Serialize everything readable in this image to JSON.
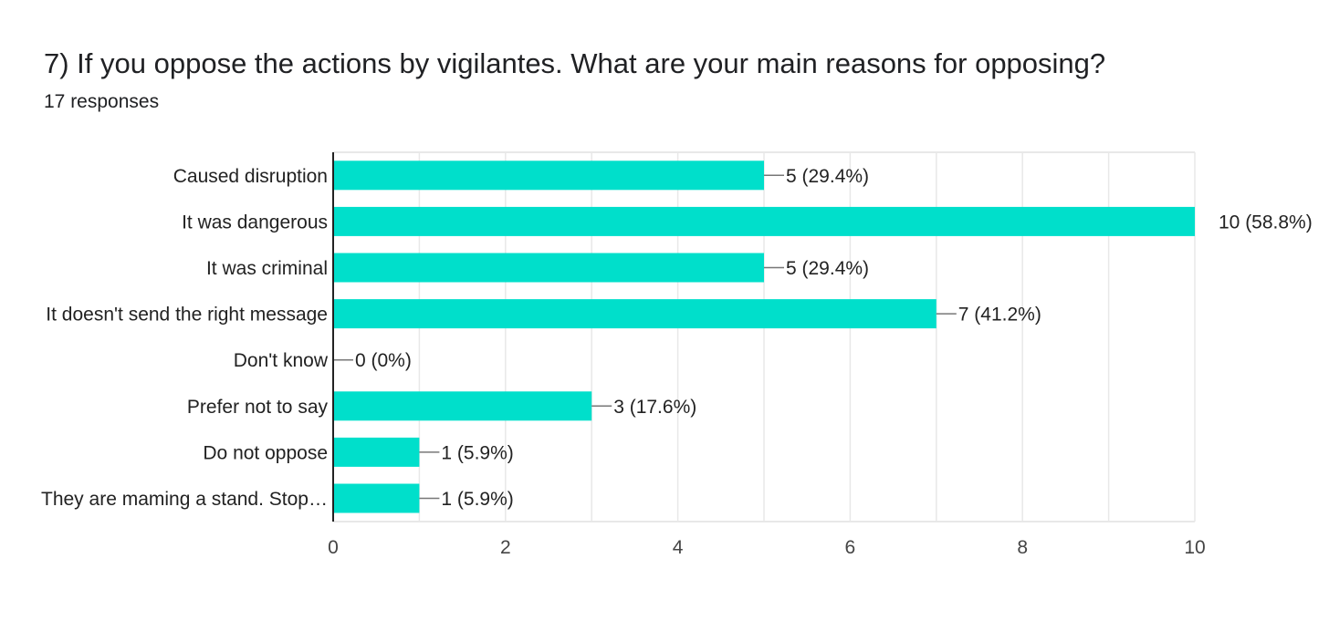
{
  "question": {
    "title": "7) If you oppose the actions by vigilantes. What are your main reasons for opposing?",
    "responses": "17 responses"
  },
  "colors": {
    "bar": "#00dfcb",
    "grid": "#e8e8e8",
    "axis": "#222222",
    "leader": "#777777"
  },
  "chart_data": {
    "type": "bar",
    "orientation": "horizontal",
    "categories": [
      "Caused disruption",
      "It was dangerous",
      "It was criminal",
      "It doesn't send the right message",
      "Don't know",
      "Prefer not to say",
      "Do not oppose",
      "They are maming a stand. Stop…"
    ],
    "values": [
      5,
      10,
      5,
      7,
      0,
      3,
      1,
      1
    ],
    "data_labels": [
      "5 (29.4%)",
      "10 (58.8%)",
      "5 (29.4%)",
      "7 (41.2%)",
      "0 (0%)",
      "3 (17.6%)",
      "1 (5.9%)",
      "1 (5.9%)"
    ],
    "xlim": [
      0,
      10
    ],
    "x_ticks": [
      0,
      2,
      4,
      6,
      8,
      10
    ],
    "grid": true
  }
}
